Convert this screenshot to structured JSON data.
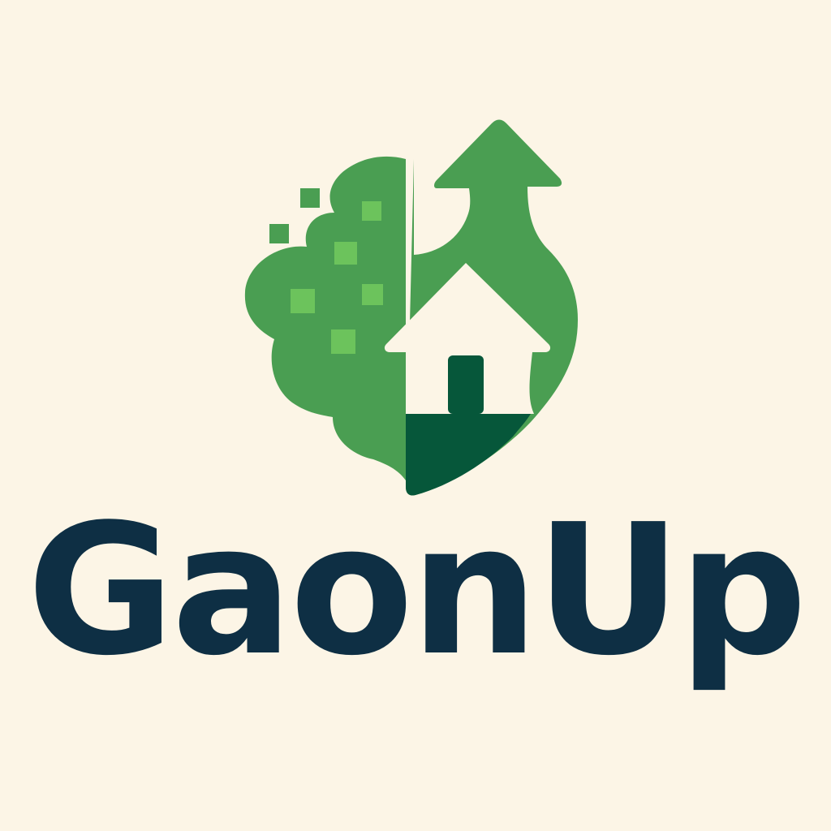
{
  "brand": {
    "name": "GaonUp",
    "colors": {
      "background": "#FCF5E6",
      "leaf_green": "#4A9E52",
      "pixel_green": "#6CC35C",
      "dark_green": "#06573A",
      "house_white": "#FCF5E6",
      "wordmark_navy": "#0E2F44"
    },
    "icon_names": [
      "tree-icon",
      "pixel-squares-icon",
      "upward-arrow-icon",
      "house-icon",
      "heart-shape"
    ]
  }
}
